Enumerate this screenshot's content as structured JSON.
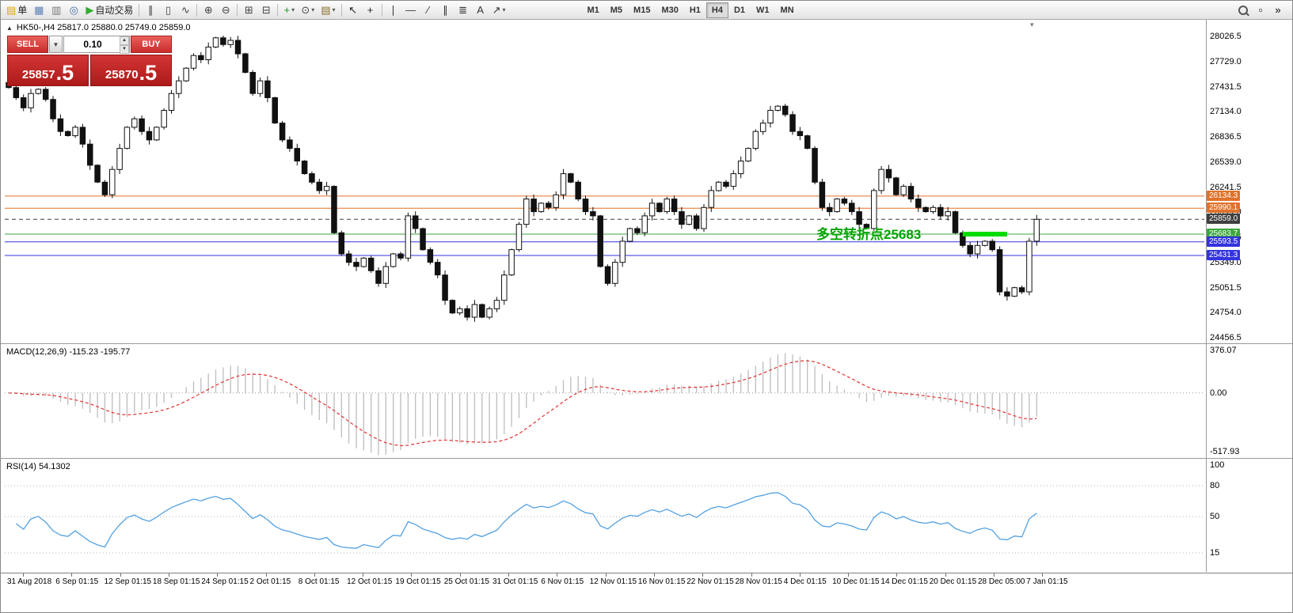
{
  "toolbar": {
    "items": [
      {
        "name": "new-order-button",
        "glyph": "▤",
        "glyph_color": "#e0a800",
        "label": "单"
      },
      {
        "name": "charts-button",
        "glyph": "▦",
        "glyph_color": "#5b7fb4"
      },
      {
        "name": "profiles-button",
        "glyph": "▥",
        "glyph_color": "#777777"
      },
      {
        "name": "terminal-button",
        "glyph": "◎",
        "glyph_color": "#4a6ea9"
      },
      {
        "name": "auto-trading-button",
        "glyph": "▶",
        "glyph_color": "#2eae2e",
        "label": "自动交易"
      },
      {
        "type": "sep"
      },
      {
        "name": "bar-chart-button",
        "glyph": "∥",
        "glyph_color": "#444444"
      },
      {
        "name": "candlestick-button",
        "glyph": "▯",
        "glyph_color": "#444444"
      },
      {
        "name": "line-chart-button",
        "glyph": "∿",
        "glyph_color": "#444444"
      },
      {
        "type": "sep"
      },
      {
        "name": "zoom-in-button",
        "glyph": "⊕",
        "glyph_color": "#444444"
      },
      {
        "name": "zoom-out-button",
        "glyph": "⊖",
        "glyph_color": "#444444"
      },
      {
        "type": "sep"
      },
      {
        "name": "tile-windows-button",
        "glyph": "⊞",
        "glyph_color": "#444444"
      },
      {
        "name": "cascade-windows-button",
        "glyph": "⊟",
        "glyph_color": "#444444"
      },
      {
        "type": "sep"
      },
      {
        "name": "indicators-button",
        "glyph": "+",
        "glyph_color": "#1a9a1a",
        "caret": true
      },
      {
        "name": "periods-button",
        "glyph": "⊙",
        "glyph_color": "#444444",
        "caret": true
      },
      {
        "name": "templates-button",
        "glyph": "▤",
        "glyph_color": "#8a6a2a",
        "caret": true
      },
      {
        "type": "sep"
      },
      {
        "name": "cursor-button",
        "glyph": "↖",
        "glyph_color": "#222222"
      },
      {
        "name": "crosshair-button",
        "glyph": "+",
        "glyph_color": "#222222"
      },
      {
        "type": "sep"
      },
      {
        "name": "vertical-line-button",
        "glyph": "∣",
        "glyph_color": "#333333"
      },
      {
        "name": "horizontal-line-button",
        "glyph": "―",
        "glyph_color": "#333333"
      },
      {
        "name": "trendline-button",
        "glyph": "∕",
        "glyph_color": "#333333"
      },
      {
        "name": "channel-button",
        "glyph": "∥",
        "glyph_color": "#333333"
      },
      {
        "name": "fibonacci-button",
        "glyph": "≣",
        "glyph_color": "#333333"
      },
      {
        "name": "text-button",
        "glyph": "A",
        "glyph_color": "#333333"
      },
      {
        "name": "arrows-button",
        "glyph": "↗",
        "glyph_color": "#333333",
        "caret": true
      }
    ],
    "timeframes": [
      "M1",
      "M5",
      "M15",
      "M30",
      "H1",
      "H4",
      "D1",
      "W1",
      "MN"
    ],
    "active_timeframe": "H4",
    "right_items": [
      {
        "name": "search-button",
        "icon": "magnifier"
      },
      {
        "name": "window-button",
        "glyph": "▫"
      },
      {
        "name": "more-tools-button",
        "glyph": "»"
      }
    ]
  },
  "header": {
    "symbol_info": "HK50-,H4  25817.0 25880.0 25749.0 25859.0"
  },
  "one_click": {
    "sell_label": "SELL",
    "buy_label": "BUY",
    "volume": "0.10",
    "sell_main": "25857",
    "sell_frac": ".5",
    "buy_main": "25870",
    "buy_frac": ".5"
  },
  "main_chart": {
    "y_axis_labels": [
      "28026.5",
      "27729.0",
      "27431.5",
      "27134.0",
      "26836.5",
      "26539.0",
      "26241.5",
      "25944.0",
      "25646.5",
      "25349.0",
      "25051.5",
      "24754.0",
      "24456.5"
    ],
    "levels": [
      {
        "label": "26134.3",
        "price": 26134.3,
        "color": "#e0722a",
        "style": "solid"
      },
      {
        "label": "25990.1",
        "price": 25990.1,
        "color": "#e0722a",
        "style": "solid"
      },
      {
        "label": "25859.0",
        "price": 25859.0,
        "color": "#3f3f3f",
        "style": "dash",
        "role": "current-price"
      },
      {
        "label": "25683.7",
        "price": 25683.7,
        "color": "#3aa63a",
        "style": "solid"
      },
      {
        "label": "25593.5",
        "price": 25593.5,
        "color": "#3333e0",
        "style": "solid"
      },
      {
        "label": "25431.3",
        "price": 25431.3,
        "color": "#3333e0",
        "style": "solid"
      }
    ],
    "highlight_segment": {
      "price": 25683.7,
      "from_candle": 129,
      "to_candle": 135,
      "color": "#00dc00"
    },
    "annotation": {
      "text": "多空转折点25683",
      "color": "#00a400"
    },
    "candle_closes": [
      27420,
      27300,
      27180,
      27350,
      27400,
      27280,
      27050,
      26900,
      26850,
      26950,
      26750,
      26500,
      26300,
      26150,
      26450,
      26700,
      26950,
      27050,
      26900,
      26800,
      26950,
      27150,
      27350,
      27500,
      27650,
      27800,
      27750,
      27900,
      28010,
      27930,
      27980,
      27820,
      27600,
      27350,
      27500,
      27300,
      27000,
      26800,
      26700,
      26550,
      26400,
      26300,
      26200,
      26250,
      25700,
      25450,
      25350,
      25300,
      25400,
      25250,
      25100,
      25300,
      25450,
      25400,
      25900,
      25750,
      25500,
      25350,
      25200,
      24900,
      24750,
      24800,
      24700,
      24850,
      24700,
      24800,
      24900,
      25200,
      25500,
      25800,
      26100,
      25950,
      26050,
      26000,
      26150,
      26400,
      26300,
      26100,
      25950,
      25900,
      25300,
      25100,
      25350,
      25600,
      25750,
      25700,
      25900,
      26050,
      25950,
      26100,
      25950,
      25800,
      25900,
      25750,
      26000,
      26200,
      26300,
      26250,
      26400,
      26550,
      26700,
      26900,
      27000,
      27150,
      27200,
      27100,
      26900,
      26850,
      26700,
      26300,
      26000,
      25950,
      26100,
      26050,
      25950,
      25800,
      25750,
      26200,
      26450,
      26350,
      26150,
      26250,
      26100,
      26000,
      25950,
      26000,
      25900,
      25950,
      25700,
      25550,
      25450,
      25550,
      25600,
      25500,
      25000,
      24950,
      25050,
      25000,
      25600,
      25859
    ]
  },
  "macd": {
    "label": "MACD(12,26,9) -115.23 -195.77",
    "scale_max": "376.07",
    "scale_zero": "0.00",
    "scale_min": "-517.93"
  },
  "rsi": {
    "label": "RSI(14) 54.1302",
    "scale_labels": [
      "100",
      "80",
      "50",
      "15"
    ],
    "levels": [
      80,
      50,
      15
    ]
  },
  "x_axis": [
    "31 Aug 2018",
    "6 Sep 01:15",
    "12 Sep 01:15",
    "18 Sep 01:15",
    "24 Sep 01:15",
    "2 Oct 01:15",
    "8 Oct 01:15",
    "12 Oct 01:15",
    "19 Oct 01:15",
    "25 Oct 01:15",
    "31 Oct 01:15",
    "6 Nov 01:15",
    "12 Nov 01:15",
    "16 Nov 01:15",
    "22 Nov 01:15",
    "28 Nov 01:15",
    "4 Dec 01:15",
    "10 Dec 01:15",
    "14 Dec 01:15",
    "20 Dec 01:15",
    "28 Dec 05:00",
    "7 Jan 01:15"
  ]
}
